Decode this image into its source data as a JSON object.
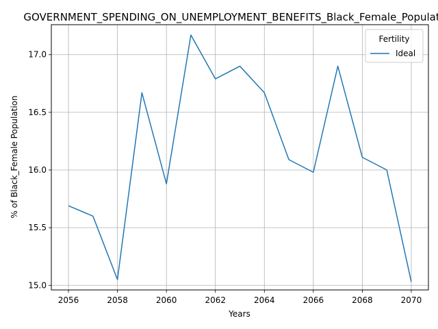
{
  "chart_data": {
    "type": "line",
    "title": "GOVERNMENT_SPENDING_ON_UNEMPLOYMENT_BENEFITS_Black_Female_Population",
    "xlabel": "Years",
    "ylabel": "% of Black_Female Population",
    "x": [
      2056,
      2057,
      2058,
      2059,
      2060,
      2061,
      2062,
      2063,
      2064,
      2065,
      2066,
      2067,
      2068,
      2069,
      2070
    ],
    "series": [
      {
        "name": "Ideal",
        "color": "#1f77b4",
        "values": [
          15.69,
          15.6,
          15.05,
          16.67,
          15.88,
          17.17,
          16.79,
          16.9,
          16.67,
          16.09,
          15.98,
          16.9,
          16.11,
          16.0,
          15.03
        ]
      }
    ],
    "xlim": [
      2055.3,
      2070.7
    ],
    "ylim": [
      14.96,
      17.26
    ],
    "xticks": [
      2056,
      2058,
      2060,
      2062,
      2064,
      2066,
      2068,
      2070
    ],
    "xtick_labels": [
      "2056",
      "2058",
      "2060",
      "2062",
      "2064",
      "2066",
      "2068",
      "2070"
    ],
    "yticks": [
      15.0,
      15.5,
      16.0,
      16.5,
      17.0
    ],
    "ytick_labels": [
      "15.0",
      "15.5",
      "16.0",
      "16.5",
      "17.0"
    ],
    "grid": true,
    "legend": {
      "title": "Fertility",
      "position": "top-right"
    }
  }
}
